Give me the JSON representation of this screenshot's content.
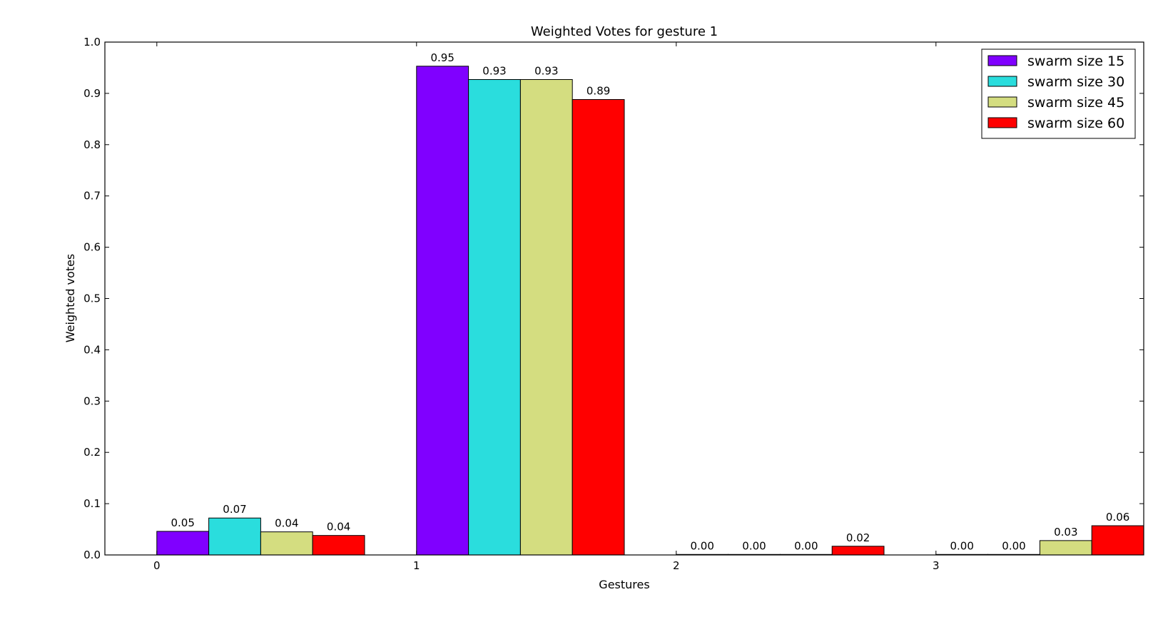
{
  "chart_data": {
    "type": "bar",
    "title": "Weighted Votes for gesture 1",
    "xlabel": "Gestures",
    "ylabel": "Weighted votes",
    "categories": [
      "0",
      "1",
      "2",
      "3"
    ],
    "ylim": [
      0,
      1.0
    ],
    "yticks": [
      "0.0",
      "0.1",
      "0.2",
      "0.3",
      "0.4",
      "0.5",
      "0.6",
      "0.7",
      "0.8",
      "0.9",
      "1.0"
    ],
    "grid": false,
    "legend_position": "top-right",
    "series": [
      {
        "name": "swarm size 15",
        "color": "#8000ff",
        "values": [
          0.046,
          0.953,
          0.001,
          0.001
        ],
        "labels": [
          "0.05",
          "0.95",
          "0.00",
          "0.00"
        ]
      },
      {
        "name": "swarm size 30",
        "color": "#2adddd",
        "values": [
          0.072,
          0.927,
          0.001,
          0.001
        ],
        "labels": [
          "0.07",
          "0.93",
          "0.00",
          "0.00"
        ]
      },
      {
        "name": "swarm size 45",
        "color": "#d4dd80",
        "values": [
          0.045,
          0.927,
          0.001,
          0.028
        ],
        "labels": [
          "0.04",
          "0.93",
          "0.00",
          "0.03"
        ]
      },
      {
        "name": "swarm size 60",
        "color": "#ff0000",
        "values": [
          0.038,
          0.888,
          0.017,
          0.057
        ],
        "labels": [
          "0.04",
          "0.89",
          "0.02",
          "0.06"
        ]
      }
    ]
  }
}
